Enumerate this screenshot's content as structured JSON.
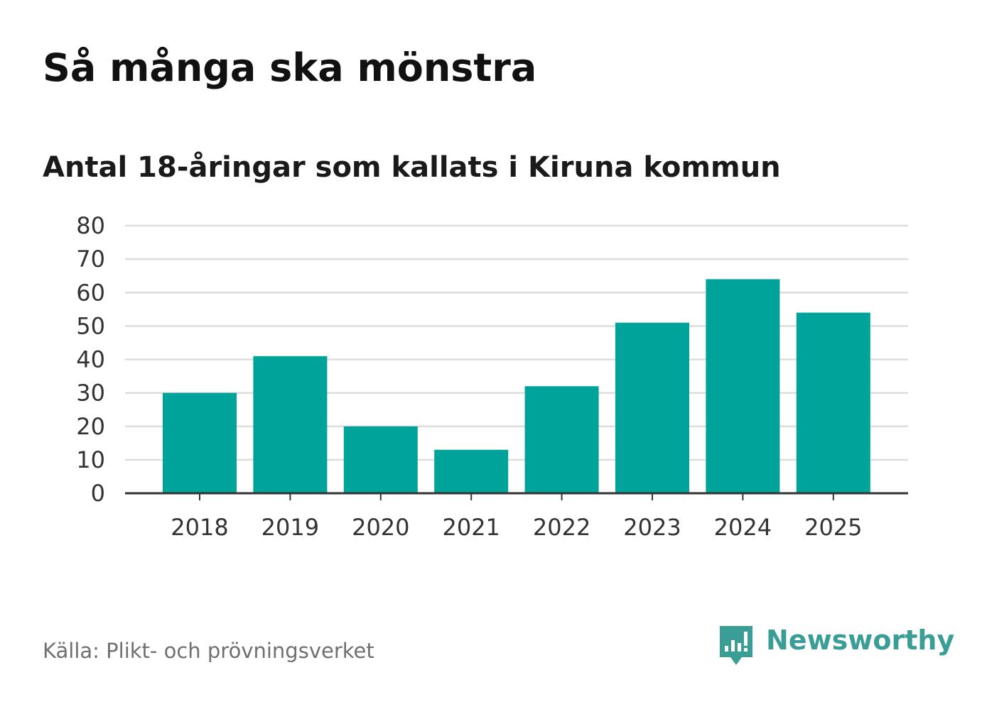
{
  "title": "Så många ska mönstra",
  "subtitle": "Antal 18-åringar som kallats i Kiruna kommun",
  "source": "Källa: Plikt- och prövningsverket",
  "brand": {
    "name": "Newsworthy",
    "icon": "newsworthy-logo-icon",
    "color": "#3a9d96"
  },
  "colors": {
    "bar": "#00a39a",
    "grid": "#dddddd",
    "axis": "#333333"
  },
  "chart_data": {
    "type": "bar",
    "categories": [
      "2018",
      "2019",
      "2020",
      "2021",
      "2022",
      "2023",
      "2024",
      "2025"
    ],
    "values": [
      30,
      41,
      20,
      13,
      32,
      51,
      64,
      54
    ],
    "ylim": [
      0,
      80
    ],
    "yticks": [
      0,
      10,
      20,
      30,
      40,
      50,
      60,
      70,
      80
    ],
    "grid": true,
    "legend": "none"
  }
}
